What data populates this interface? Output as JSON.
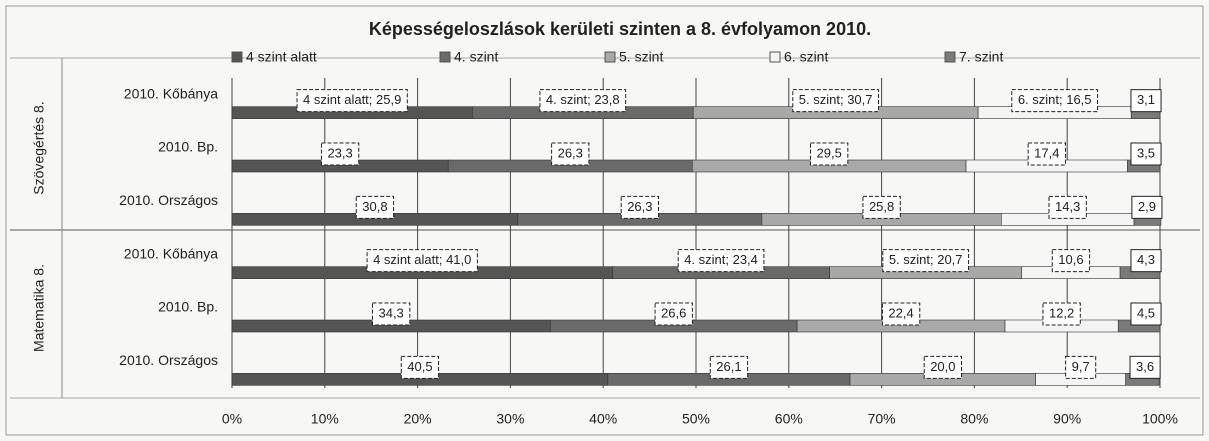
{
  "chart_data": {
    "type": "stacked_bar_horizontal",
    "title": "Képességeloszlások kerületi szinten  a 8. évfolyamon 2010.",
    "group_labels": [
      "Szövegértés 8.",
      "Matematika 8."
    ],
    "categories": [
      "2010. Kőbánya",
      "2010. Bp.",
      "2010. Országos",
      "2010. Kőbánya",
      "2010. Bp.",
      "2010. Országos"
    ],
    "series": [
      {
        "name": "4 szint alatt",
        "color": "#555555",
        "values": [
          25.9,
          23.3,
          30.8,
          41.0,
          34.3,
          40.5
        ],
        "value_labels": [
          "4 szint alatt; 25,9",
          "23,3",
          "30,8",
          "4 szint alatt; 41,0",
          "34,3",
          "40,5"
        ]
      },
      {
        "name": "4. szint",
        "color": "#6a6a6a",
        "values": [
          23.8,
          26.3,
          26.3,
          23.4,
          26.6,
          26.1
        ],
        "value_labels": [
          "4. szint; 23,8",
          "26,3",
          "26,3",
          "4. szint; 23,4",
          "26,6",
          "26,1"
        ]
      },
      {
        "name": "5. szint",
        "color": "#a8a8a8",
        "values": [
          30.7,
          29.5,
          25.8,
          20.7,
          22.4,
          20.0
        ],
        "value_labels": [
          "5. szint; 30,7",
          "29,5",
          "25,8",
          "5. szint; 20,7",
          "22,4",
          "20,0"
        ]
      },
      {
        "name": "6. szint",
        "color": "#f4f4f4",
        "values": [
          16.5,
          17.4,
          14.3,
          10.6,
          12.2,
          9.7
        ],
        "value_labels": [
          "6. szint; 16,5",
          "17,4",
          "14,3",
          "10,6",
          "12,2",
          "9,7"
        ]
      },
      {
        "name": "7. szint",
        "color": "#7a7a7a",
        "values": [
          3.1,
          3.5,
          2.9,
          4.3,
          4.5,
          3.6
        ],
        "value_labels": [
          "3,1",
          "3,5",
          "2,9",
          "4,3",
          "4,5",
          "3,6"
        ]
      }
    ],
    "xlim": [
      0,
      100
    ],
    "xticks": [
      {
        "value": 0,
        "label": "0%"
      },
      {
        "value": 10,
        "label": "10%"
      },
      {
        "value": 20,
        "label": "20%"
      },
      {
        "value": 30,
        "label": "30%"
      },
      {
        "value": 40,
        "label": "40%"
      },
      {
        "value": 50,
        "label": "50%"
      },
      {
        "value": 60,
        "label": "60%"
      },
      {
        "value": 70,
        "label": "70%"
      },
      {
        "value": 80,
        "label": "80%"
      },
      {
        "value": 90,
        "label": "90%"
      },
      {
        "value": 100,
        "label": "100%"
      }
    ],
    "grid": true
  }
}
